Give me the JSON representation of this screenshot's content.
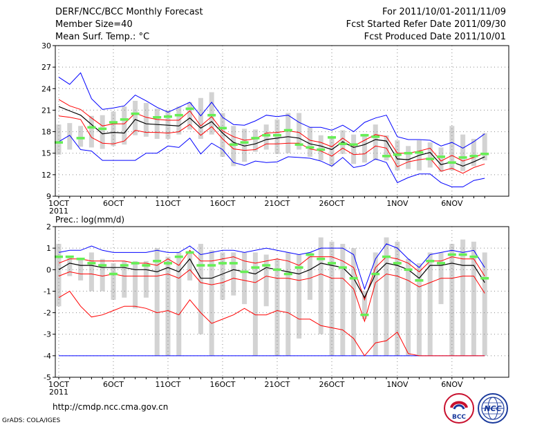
{
  "header": {
    "title": "DERF/NCC/BCC Monthly Forecast",
    "member": "Member Size=40",
    "variable": "Mean Surf. Temp.: °C",
    "period": "For 2011/10/01-2011/11/09",
    "started": "Fcst Started Refer Date 2011/09/30",
    "produced": "Fcst Produced Date 2011/10/01"
  },
  "footer": {
    "url": "http://cmdp.ncc.cma.gov.cn",
    "credit": "GrADS: COLA/IGES"
  },
  "logos": {
    "bcc": "BCC",
    "ncc": "NCC"
  },
  "colors": {
    "envelope": "#0000ff",
    "spread": "#ff0000",
    "mean": "#000000",
    "obs": "#66ee55",
    "bar": "#d3d3d3",
    "grid": "#888888"
  },
  "chart_data": [
    {
      "type": "line",
      "title": "Mean Surf. Temp.: °C",
      "x_days": 40,
      "x_ticks": [
        {
          "day": 1,
          "label": "1OCT"
        },
        {
          "day": 6,
          "label": "6OCT"
        },
        {
          "day": 11,
          "label": "11OCT"
        },
        {
          "day": 16,
          "label": "16OCT"
        },
        {
          "day": 21,
          "label": "21OCT"
        },
        {
          "day": 26,
          "label": "26OCT"
        },
        {
          "day": 32,
          "label": "1NOV"
        },
        {
          "day": 37,
          "label": "6NOV"
        }
      ],
      "year_label": "2011",
      "ylim": [
        9,
        30
      ],
      "y_ticks": [
        9,
        12,
        15,
        18,
        21,
        24,
        27,
        30
      ],
      "series": [
        {
          "name": "max",
          "color": "#0000ff",
          "values": [
            25.6,
            24.6,
            26.2,
            22.6,
            21.1,
            21.3,
            21.6,
            23.1,
            22.3,
            21.4,
            20.7,
            21.4,
            22.1,
            20.2,
            22.1,
            20.0,
            19.0,
            18.9,
            19.5,
            20.3,
            20.1,
            20.3,
            19.3,
            18.6,
            18.6,
            18.2,
            18.9,
            18.0,
            19.3,
            19.9,
            20.3,
            17.3,
            16.9,
            16.9,
            16.8,
            16.0,
            16.5,
            15.7,
            16.6,
            17.7
          ]
        },
        {
          "name": "upper",
          "color": "#ff0000",
          "values": [
            22.5,
            21.6,
            21.1,
            19.9,
            18.8,
            19.1,
            19.1,
            20.6,
            20.0,
            19.7,
            19.6,
            19.6,
            20.9,
            18.8,
            20.1,
            18.1,
            17.3,
            16.8,
            17.0,
            17.8,
            17.9,
            18.1,
            17.9,
            16.8,
            16.5,
            15.9,
            17.1,
            16.0,
            16.8,
            17.6,
            17.3,
            15.0,
            15.0,
            15.3,
            15.7,
            13.9,
            14.7,
            13.9,
            14.4,
            15.0
          ]
        },
        {
          "name": "mean",
          "color": "#000000",
          "values": [
            21.5,
            20.9,
            20.3,
            19.0,
            17.7,
            17.9,
            17.8,
            19.7,
            19.1,
            19.0,
            18.9,
            18.8,
            19.9,
            18.5,
            19.4,
            17.8,
            16.5,
            16.0,
            16.3,
            16.9,
            17.1,
            17.3,
            17.1,
            16.3,
            16.0,
            15.5,
            16.6,
            15.8,
            16.2,
            16.9,
            16.7,
            14.2,
            14.1,
            14.7,
            15.1,
            13.4,
            13.8,
            13.2,
            13.8,
            14.5
          ]
        },
        {
          "name": "lower",
          "color": "#ff0000",
          "values": [
            20.2,
            20.0,
            19.7,
            17.2,
            16.4,
            16.3,
            16.7,
            18.2,
            17.9,
            17.9,
            17.8,
            18.0,
            19.0,
            17.5,
            18.7,
            17.0,
            15.6,
            15.4,
            15.5,
            16.3,
            16.3,
            16.4,
            16.4,
            15.6,
            15.3,
            14.6,
            15.7,
            14.8,
            14.9,
            16.0,
            15.7,
            13.1,
            13.8,
            14.1,
            14.3,
            12.5,
            12.9,
            12.2,
            13.0,
            13.5
          ]
        },
        {
          "name": "min",
          "color": "#0000ff",
          "values": [
            16.6,
            17.5,
            15.5,
            15.3,
            14.0,
            14.0,
            14.0,
            14.0,
            15.0,
            15.0,
            16.0,
            15.8,
            17.1,
            14.9,
            16.4,
            15.5,
            13.7,
            13.3,
            13.9,
            13.7,
            13.8,
            14.5,
            14.4,
            14.3,
            13.9,
            13.2,
            14.4,
            13.0,
            13.3,
            14.2,
            13.7,
            10.9,
            11.6,
            12.1,
            12.1,
            10.9,
            10.3,
            10.3,
            11.2,
            11.5
          ]
        },
        {
          "name": "box_top",
          "color": "#d3d3d3",
          "values": [
            19.0,
            19.2,
            18.8,
            20.2,
            20.3,
            20.8,
            21.5,
            22.3,
            22.0,
            21.2,
            21.0,
            21.5,
            22.1,
            22.7,
            23.5,
            20.6,
            18.8,
            18.4,
            18.3,
            19.0,
            19.7,
            20.6,
            20.6,
            18.6,
            17.5,
            17.2,
            18.2,
            17.6,
            17.7,
            19.0,
            17.5,
            16.8,
            16.0,
            16.8,
            16.5,
            15.8,
            18.8,
            17.6,
            17.0,
            17.8
          ]
        },
        {
          "name": "box_bottom",
          "color": "#d3d3d3",
          "values": [
            14.8,
            15.5,
            15.9,
            15.8,
            15.6,
            16.0,
            16.2,
            17.5,
            17.3,
            17.0,
            17.0,
            17.6,
            18.3,
            17.0,
            17.6,
            14.5,
            13.2,
            13.8,
            15.2,
            15.5,
            14.9,
            15.0,
            15.5,
            14.5,
            14.0,
            13.2,
            14.9,
            13.5,
            13.7,
            14.0,
            14.0,
            12.6,
            12.8,
            12.6,
            13.0,
            12.4,
            12.6,
            12.5,
            13.2,
            14.0
          ]
        },
        {
          "name": "observation",
          "color": "#66ee55",
          "values": [
            16.5,
            null,
            17.1,
            18.6,
            18.4,
            19.3,
            19.7,
            20.5,
            null,
            20.0,
            20.1,
            20.3,
            21.2,
            null,
            20.3,
            18.5,
            16.2,
            16.5,
            17.1,
            17.5,
            17.5,
            18.2,
            16.2,
            15.8,
            15.5,
            17.2,
            16.3,
            16.2,
            17.5,
            17.3,
            14.6,
            14.8,
            15.0,
            15.1,
            14.2,
            14.5,
            13.7,
            14.4,
            14.6,
            14.9
          ]
        }
      ]
    },
    {
      "type": "line",
      "title": "Prec.: log(mm/d)",
      "x_days": 40,
      "x_ticks": [
        {
          "day": 1,
          "label": "1OCT"
        },
        {
          "day": 6,
          "label": "6OCT"
        },
        {
          "day": 11,
          "label": "11OCT"
        },
        {
          "day": 16,
          "label": "16OCT"
        },
        {
          "day": 21,
          "label": "21OCT"
        },
        {
          "day": 26,
          "label": "26OCT"
        },
        {
          "day": 32,
          "label": "1NOV"
        },
        {
          "day": 37,
          "label": "6NOV"
        }
      ],
      "year_label": "2011",
      "ylim": [
        -5,
        2
      ],
      "y_ticks": [
        -5,
        -4,
        -3,
        -2,
        -1,
        0,
        1,
        2
      ],
      "series": [
        {
          "name": "max",
          "color": "#0000ff",
          "values": [
            0.8,
            0.9,
            0.9,
            1.1,
            0.9,
            0.8,
            0.8,
            0.8,
            0.8,
            0.9,
            0.8,
            0.8,
            1.1,
            0.7,
            0.8,
            0.9,
            0.9,
            0.8,
            0.9,
            1.0,
            0.9,
            0.8,
            0.7,
            0.8,
            1.0,
            1.0,
            1.0,
            0.7,
            -0.9,
            0.5,
            1.2,
            1.0,
            0.5,
            0.1,
            0.7,
            0.8,
            0.9,
            0.8,
            0.9,
            0.1
          ]
        },
        {
          "name": "upper",
          "color": "#ff0000",
          "values": [
            0.3,
            0.5,
            0.5,
            0.4,
            0.4,
            0.4,
            0.4,
            0.3,
            0.3,
            0.2,
            0.5,
            0.2,
            0.9,
            0.4,
            0.4,
            0.5,
            0.6,
            0.4,
            0.3,
            0.4,
            0.5,
            0.4,
            0.2,
            0.6,
            0.6,
            0.6,
            0.4,
            0.1,
            -1.4,
            0.1,
            0.6,
            0.5,
            0.3,
            -0.1,
            0.4,
            0.4,
            0.6,
            0.5,
            0.5,
            -0.3
          ]
        },
        {
          "name": "mean",
          "color": "#000000",
          "values": [
            0.0,
            0.3,
            0.2,
            0.2,
            0.1,
            0.1,
            0.1,
            0.0,
            0.0,
            -0.1,
            0.1,
            -0.1,
            0.5,
            -0.4,
            -0.4,
            -0.2,
            0.0,
            -0.1,
            -0.2,
            0.1,
            0.0,
            -0.1,
            -0.2,
            0.0,
            0.3,
            0.2,
            0.1,
            -0.4,
            -1.3,
            -0.2,
            0.3,
            0.2,
            0.0,
            -0.4,
            0.2,
            0.2,
            0.3,
            0.2,
            0.2,
            -0.6
          ]
        },
        {
          "name": "lower",
          "color": "#ff0000",
          "values": [
            -0.3,
            -0.1,
            -0.2,
            -0.2,
            -0.3,
            -0.2,
            -0.3,
            -0.3,
            -0.3,
            -0.3,
            -0.2,
            -0.4,
            0.0,
            -0.6,
            -0.7,
            -0.6,
            -0.4,
            -0.5,
            -0.6,
            -0.3,
            -0.4,
            -0.4,
            -0.5,
            -0.4,
            -0.2,
            -0.4,
            -0.4,
            -0.9,
            -2.4,
            -0.6,
            -0.2,
            -0.3,
            -0.5,
            -0.8,
            -0.6,
            -0.4,
            -0.4,
            -0.3,
            -0.3,
            -1.1
          ]
        },
        {
          "name": "min",
          "color": "#ff0000",
          "values": [
            -1.3,
            -1.0,
            -1.7,
            -2.2,
            -2.1,
            -1.9,
            -1.7,
            -1.7,
            -1.8,
            -2.0,
            -1.9,
            -2.1,
            -1.4,
            -2.0,
            -2.5,
            -2.3,
            -2.1,
            -1.8,
            -2.1,
            -2.1,
            -1.9,
            -2.0,
            -2.3,
            -2.3,
            -2.6,
            -2.7,
            -2.8,
            -3.2,
            -4.0,
            -3.4,
            -3.3,
            -2.9,
            -3.9,
            -4.0,
            -4.0,
            -4.0,
            -4.0,
            -4.0,
            -4.0,
            -4.0
          ]
        },
        {
          "name": "zero_floor",
          "color": "#0000ff",
          "values": [
            -4,
            -4,
            -4,
            -4,
            -4,
            -4,
            -4,
            -4,
            -4,
            -4,
            -4,
            -4,
            -4,
            -4,
            -4,
            -4,
            -4,
            -4,
            -4,
            -4,
            -4,
            -4,
            -4,
            -4,
            -4,
            -4,
            -4,
            -4,
            -4,
            -4,
            -4,
            -4,
            -4,
            -4,
            -4,
            -4,
            -4,
            -4,
            -4,
            -4
          ]
        },
        {
          "name": "box_top",
          "color": "#d3d3d3",
          "values": [
            1.2,
            0.6,
            0.5,
            0.8,
            0.5,
            0.3,
            0.4,
            0.4,
            0.4,
            1.0,
            0.6,
            0.8,
            0.8,
            1.2,
            0.9,
            0.8,
            0.8,
            0.8,
            0.8,
            0.7,
            0.5,
            0.8,
            0.7,
            0.8,
            1.5,
            1.3,
            1.2,
            1.0,
            -1.0,
            0.8,
            1.5,
            1.3,
            0.5,
            0.3,
            0.8,
            0.8,
            1.2,
            1.4,
            1.3,
            0.8
          ]
        },
        {
          "name": "box_bottom",
          "color": "#d3d3d3",
          "values": [
            -1.7,
            -0.3,
            -0.5,
            -1.0,
            -1.0,
            -1.4,
            -1.3,
            -1.8,
            -1.3,
            -4.0,
            -4.0,
            -4.0,
            -0.5,
            -3.0,
            -4.0,
            -1.4,
            -1.2,
            -1.6,
            -4.0,
            -1.7,
            -4.0,
            -4.0,
            -3.2,
            -1.4,
            -3.0,
            -4.0,
            -4.0,
            -4.0,
            -2.3,
            -4.0,
            -4.0,
            -4.0,
            -4.0,
            -4.0,
            -4.0,
            -1.6,
            -4.0,
            -4.0,
            -4.0,
            -4.0
          ]
        },
        {
          "name": "observation",
          "color": "#66ee55",
          "values": [
            0.6,
            0.6,
            0.5,
            0.3,
            0.2,
            -0.2,
            0.2,
            0.3,
            0.2,
            0.4,
            0.3,
            0.6,
            0.8,
            0.2,
            0.2,
            0.3,
            0.3,
            -0.1,
            0.1,
            0.2,
            0.0,
            -0.2,
            0.1,
            0.7,
            0.5,
            0.3,
            0.1,
            -0.4,
            -2.1,
            -0.2,
            0.6,
            0.3,
            0.0,
            -0.5,
            0.4,
            0.3,
            0.7,
            0.7,
            0.6,
            -0.4
          ]
        }
      ]
    }
  ]
}
